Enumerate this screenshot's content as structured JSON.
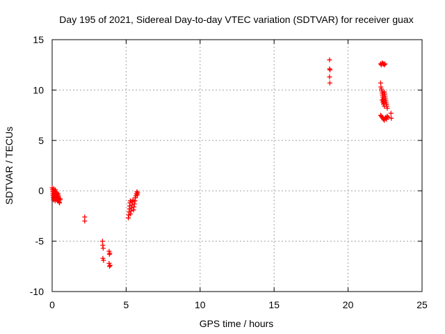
{
  "chart_data": {
    "type": "scatter",
    "title": "Day 195 of 2021, Sidereal Day-to-day VTEC variation (SDTVAR) for receiver guax",
    "xlabel": "GPS time / hours",
    "ylabel": "SDTVAR / TECUs",
    "xlim": [
      0,
      25
    ],
    "ylim": [
      -10,
      15
    ],
    "xticks": [
      0,
      5,
      10,
      15,
      20,
      25
    ],
    "yticks": [
      -10,
      -5,
      0,
      5,
      10,
      15
    ],
    "xtick_labels": [
      "0",
      "5",
      "10",
      "15",
      "20",
      "25"
    ],
    "ytick_labels": [
      "-10",
      "-5",
      "0",
      "5",
      "10",
      "15"
    ],
    "grid": true,
    "marker": "+",
    "color": "#ff0000",
    "series": [
      {
        "name": "SDTVAR",
        "points": [
          [
            0.0,
            0.3
          ],
          [
            0.02,
            0.1
          ],
          [
            0.04,
            -0.1
          ],
          [
            0.05,
            -0.3
          ],
          [
            0.06,
            -0.5
          ],
          [
            0.07,
            -0.7
          ],
          [
            0.08,
            -0.9
          ],
          [
            0.1,
            0.2
          ],
          [
            0.12,
            0.0
          ],
          [
            0.14,
            -0.2
          ],
          [
            0.15,
            -0.4
          ],
          [
            0.16,
            -0.6
          ],
          [
            0.18,
            -0.8
          ],
          [
            0.2,
            -1.0
          ],
          [
            0.22,
            0.1
          ],
          [
            0.24,
            -0.1
          ],
          [
            0.25,
            -0.3
          ],
          [
            0.26,
            -0.5
          ],
          [
            0.28,
            -0.7
          ],
          [
            0.3,
            -0.9
          ],
          [
            0.32,
            -0.2
          ],
          [
            0.34,
            -0.4
          ],
          [
            0.35,
            -0.6
          ],
          [
            0.37,
            -0.8
          ],
          [
            0.39,
            -1.0
          ],
          [
            0.4,
            -0.3
          ],
          [
            0.42,
            -0.5
          ],
          [
            0.43,
            -0.7
          ],
          [
            0.45,
            -0.9
          ],
          [
            0.47,
            -1.1
          ],
          [
            0.5,
            -1.2
          ],
          [
            0.52,
            -0.9
          ],
          [
            0.55,
            -0.8
          ],
          [
            2.2,
            -2.6
          ],
          [
            2.2,
            -3.0
          ],
          [
            3.4,
            -5.0
          ],
          [
            3.42,
            -5.4
          ],
          [
            3.45,
            -5.7
          ],
          [
            3.43,
            -6.7
          ],
          [
            3.47,
            -6.9
          ],
          [
            3.85,
            -6.0
          ],
          [
            3.87,
            -6.3
          ],
          [
            3.9,
            -6.2
          ],
          [
            3.85,
            -7.2
          ],
          [
            3.88,
            -7.5
          ],
          [
            3.92,
            -7.4
          ],
          [
            5.15,
            -2.7
          ],
          [
            5.18,
            -2.4
          ],
          [
            5.2,
            -2.1
          ],
          [
            5.22,
            -1.8
          ],
          [
            5.24,
            -1.5
          ],
          [
            5.26,
            -1.2
          ],
          [
            5.28,
            -1.0
          ],
          [
            5.3,
            -2.3
          ],
          [
            5.33,
            -2.0
          ],
          [
            5.36,
            -1.7
          ],
          [
            5.4,
            -1.4
          ],
          [
            5.43,
            -1.1
          ],
          [
            5.46,
            -0.9
          ],
          [
            5.5,
            -1.9
          ],
          [
            5.53,
            -1.6
          ],
          [
            5.56,
            -1.3
          ],
          [
            5.6,
            -1.0
          ],
          [
            5.63,
            -0.7
          ],
          [
            5.66,
            -0.5
          ],
          [
            5.7,
            -0.3
          ],
          [
            5.73,
            -0.1
          ],
          [
            5.76,
            -0.4
          ],
          [
            5.78,
            -0.2
          ],
          [
            18.75,
            13.0
          ],
          [
            18.75,
            12.1
          ],
          [
            18.78,
            12.0
          ],
          [
            18.75,
            11.3
          ],
          [
            18.77,
            10.7
          ],
          [
            22.2,
            12.6
          ],
          [
            22.25,
            12.5
          ],
          [
            22.3,
            12.7
          ],
          [
            22.35,
            12.6
          ],
          [
            22.4,
            12.6
          ],
          [
            22.45,
            12.5
          ],
          [
            22.5,
            12.6
          ],
          [
            22.2,
            10.7
          ],
          [
            22.22,
            10.3
          ],
          [
            22.25,
            10.1
          ],
          [
            22.28,
            9.9
          ],
          [
            22.3,
            9.7
          ],
          [
            22.32,
            9.5
          ],
          [
            22.35,
            9.3
          ],
          [
            22.38,
            9.1
          ],
          [
            22.4,
            8.9
          ],
          [
            22.42,
            8.7
          ],
          [
            22.45,
            9.8
          ],
          [
            22.48,
            9.6
          ],
          [
            22.5,
            9.4
          ],
          [
            22.52,
            9.2
          ],
          [
            22.55,
            9.0
          ],
          [
            22.57,
            8.8
          ],
          [
            22.6,
            8.6
          ],
          [
            22.62,
            8.4
          ],
          [
            22.65,
            8.2
          ],
          [
            22.3,
            9.0
          ],
          [
            22.35,
            8.8
          ],
          [
            22.4,
            8.6
          ],
          [
            22.45,
            8.4
          ],
          [
            22.2,
            7.5
          ],
          [
            22.25,
            7.4
          ],
          [
            22.3,
            7.3
          ],
          [
            22.35,
            7.2
          ],
          [
            22.4,
            7.1
          ],
          [
            22.45,
            7.0
          ],
          [
            22.5,
            7.2
          ],
          [
            22.55,
            7.3
          ],
          [
            22.6,
            7.1
          ],
          [
            22.65,
            7.4
          ],
          [
            22.7,
            7.3
          ],
          [
            22.9,
            7.7
          ],
          [
            22.92,
            7.2
          ]
        ]
      }
    ]
  }
}
